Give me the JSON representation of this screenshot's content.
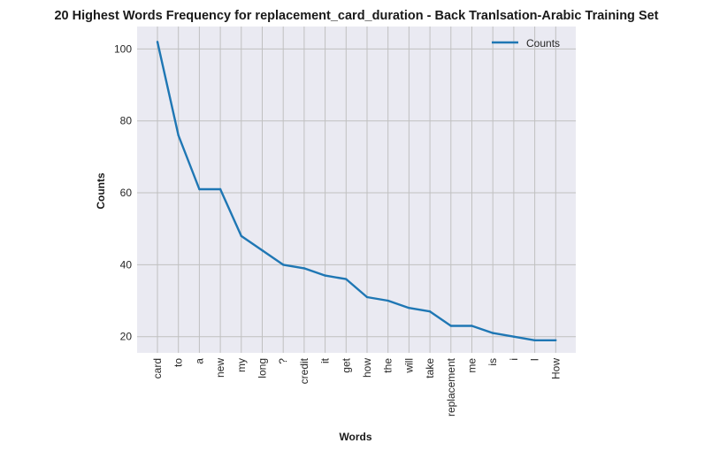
{
  "chart_data": {
    "type": "line",
    "title": "20 Highest Words Frequency for replacement_card_duration - Back Tranlsation-Arabic Training Set",
    "xlabel": "Words",
    "ylabel": "Counts",
    "categories": [
      "card",
      "to",
      "a",
      "new",
      "my",
      "long",
      "?",
      "credit",
      "it",
      "get",
      "how",
      "the",
      "will",
      "take",
      "replacement",
      "me",
      "is",
      "i",
      "I",
      "How"
    ],
    "series": [
      {
        "name": "Counts",
        "values": [
          102,
          76,
          61,
          61,
          48,
          44,
          40,
          39,
          37,
          36,
          31,
          30,
          28,
          27,
          23,
          23,
          21,
          20,
          19,
          19
        ],
        "color": "#1f77b4"
      }
    ],
    "ylim": [
      15.5,
      106.25
    ],
    "yticks": [
      20,
      40,
      60,
      80,
      100
    ],
    "grid": true,
    "legend": "top-right",
    "background": "#eaeaf2",
    "grid_color": "#c0c0c0"
  }
}
